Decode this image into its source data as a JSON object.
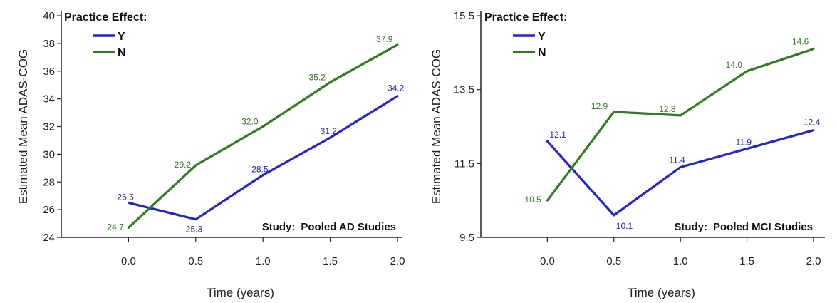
{
  "colors": {
    "Y": "#2222dd",
    "N": "#2e7d1e",
    "axis": "#222222"
  },
  "chart_data": [
    {
      "type": "line",
      "study_prefix": "Study:",
      "study": "Pooled AD Studies",
      "legend_title": "Practice Effect:",
      "legend_position": "top-left",
      "xlabel": "Time (years)",
      "ylabel": "Estimated Mean ADAS-COG",
      "x": [
        0.0,
        0.5,
        1.0,
        1.5,
        2.0
      ],
      "xlim": [
        -0.5,
        2.0
      ],
      "ylim": [
        24,
        40
      ],
      "x_ticks": [
        "0.0",
        "0.5",
        "1.0",
        "1.5",
        "2.0"
      ],
      "y_ticks": [
        "24",
        "26",
        "28",
        "30",
        "32",
        "34",
        "36",
        "38",
        "40"
      ],
      "series": [
        {
          "name": "Y",
          "values": [
            26.5,
            25.3,
            28.5,
            31.2,
            34.2
          ],
          "labels": [
            "26.5",
            "25.3",
            "28.5",
            "31.2",
            "34.2"
          ]
        },
        {
          "name": "N",
          "values": [
            24.7,
            29.2,
            32.0,
            35.2,
            37.9
          ],
          "labels": [
            "24.7",
            "29.2",
            "32.0",
            "35.2",
            "37.9"
          ]
        }
      ]
    },
    {
      "type": "line",
      "study_prefix": "Study:",
      "study": "Pooled MCI Studies",
      "legend_title": "Practice Effect:",
      "legend_position": "top-left",
      "xlabel": "Time (years)",
      "ylabel": "Estimated Mean ADAS-COG",
      "x": [
        0.0,
        0.5,
        1.0,
        1.5,
        2.0
      ],
      "xlim": [
        -0.5,
        2.0
      ],
      "ylim": [
        9.5,
        15.5
      ],
      "x_ticks": [
        "0.0",
        "0.5",
        "1.0",
        "1.5",
        "2.0"
      ],
      "y_ticks": [
        "9.5",
        "11.5",
        "13.5",
        "15.5"
      ],
      "series": [
        {
          "name": "Y",
          "values": [
            12.1,
            10.1,
            11.4,
            11.9,
            12.4
          ],
          "labels": [
            "12.1",
            "10.1",
            "11.4",
            "11.9",
            "12.4"
          ]
        },
        {
          "name": "N",
          "values": [
            10.5,
            12.9,
            12.8,
            14.0,
            14.6
          ],
          "labels": [
            "10.5",
            "12.9",
            "12.8",
            "14.0",
            "14.6"
          ]
        }
      ]
    }
  ]
}
